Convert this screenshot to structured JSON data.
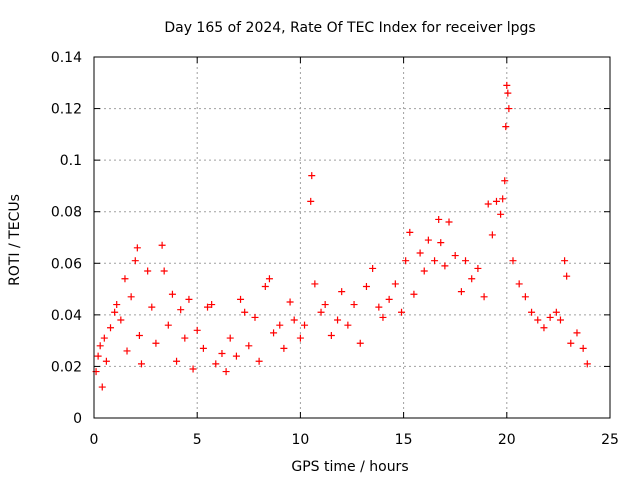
{
  "chart_data": {
    "type": "scatter",
    "title": "Day 165 of 2024, Rate Of TEC Index for receiver lpgs",
    "xlabel": "GPS time / hours",
    "ylabel": "ROTI / TECUs",
    "xlim": [
      0,
      25
    ],
    "ylim": [
      0,
      0.14
    ],
    "xticks": [
      "0",
      "5",
      "10",
      "15",
      "20",
      "25"
    ],
    "yticks": [
      "0",
      "0.02",
      "0.04",
      "0.06",
      "0.08",
      "0.1",
      "0.12",
      "0.14"
    ],
    "grid": true,
    "marker": "+",
    "color": "#ff0000",
    "series": [
      {
        "name": "ROTI",
        "x": [
          0.1,
          0.2,
          0.3,
          0.4,
          0.5,
          0.6,
          0.8,
          1.0,
          1.1,
          1.3,
          1.5,
          1.6,
          1.8,
          2.0,
          2.1,
          2.2,
          2.3,
          2.6,
          2.8,
          3.0,
          3.3,
          3.4,
          3.6,
          3.8,
          4.0,
          4.2,
          4.4,
          4.6,
          4.8,
          5.0,
          5.3,
          5.5,
          5.7,
          5.9,
          6.2,
          6.4,
          6.6,
          6.9,
          7.1,
          7.3,
          7.5,
          7.8,
          8.0,
          8.3,
          8.5,
          8.7,
          9.0,
          9.2,
          9.5,
          9.7,
          10.0,
          10.2,
          10.5,
          10.55,
          10.7,
          11.0,
          11.2,
          11.5,
          11.8,
          12.0,
          12.3,
          12.6,
          12.9,
          13.2,
          13.5,
          13.8,
          14.0,
          14.3,
          14.6,
          14.9,
          15.1,
          15.3,
          15.5,
          15.8,
          16.0,
          16.2,
          16.5,
          16.7,
          16.8,
          17.0,
          17.2,
          17.5,
          17.8,
          18.0,
          18.3,
          18.6,
          18.9,
          19.1,
          19.3,
          19.5,
          19.7,
          19.8,
          19.9,
          19.95,
          20.0,
          20.05,
          20.1,
          20.3,
          20.6,
          20.9,
          21.2,
          21.5,
          21.8,
          22.1,
          22.4,
          22.6,
          22.8,
          22.9,
          23.1,
          23.4,
          23.7,
          23.9
        ],
        "y": [
          0.018,
          0.024,
          0.028,
          0.012,
          0.031,
          0.022,
          0.035,
          0.041,
          0.044,
          0.038,
          0.054,
          0.026,
          0.047,
          0.061,
          0.066,
          0.032,
          0.021,
          0.057,
          0.043,
          0.029,
          0.067,
          0.057,
          0.036,
          0.048,
          0.022,
          0.042,
          0.031,
          0.046,
          0.019,
          0.034,
          0.027,
          0.043,
          0.044,
          0.021,
          0.025,
          0.018,
          0.031,
          0.024,
          0.046,
          0.041,
          0.028,
          0.039,
          0.022,
          0.051,
          0.054,
          0.033,
          0.036,
          0.027,
          0.045,
          0.038,
          0.031,
          0.036,
          0.084,
          0.094,
          0.052,
          0.041,
          0.044,
          0.032,
          0.038,
          0.049,
          0.036,
          0.044,
          0.029,
          0.051,
          0.058,
          0.043,
          0.039,
          0.046,
          0.052,
          0.041,
          0.061,
          0.072,
          0.048,
          0.064,
          0.057,
          0.069,
          0.061,
          0.077,
          0.068,
          0.059,
          0.076,
          0.063,
          0.049,
          0.061,
          0.054,
          0.058,
          0.047,
          0.083,
          0.071,
          0.084,
          0.079,
          0.085,
          0.092,
          0.113,
          0.129,
          0.126,
          0.12,
          0.061,
          0.052,
          0.047,
          0.041,
          0.038,
          0.035,
          0.039,
          0.041,
          0.038,
          0.061,
          0.055,
          0.029,
          0.033,
          0.027,
          0.021
        ]
      }
    ]
  }
}
